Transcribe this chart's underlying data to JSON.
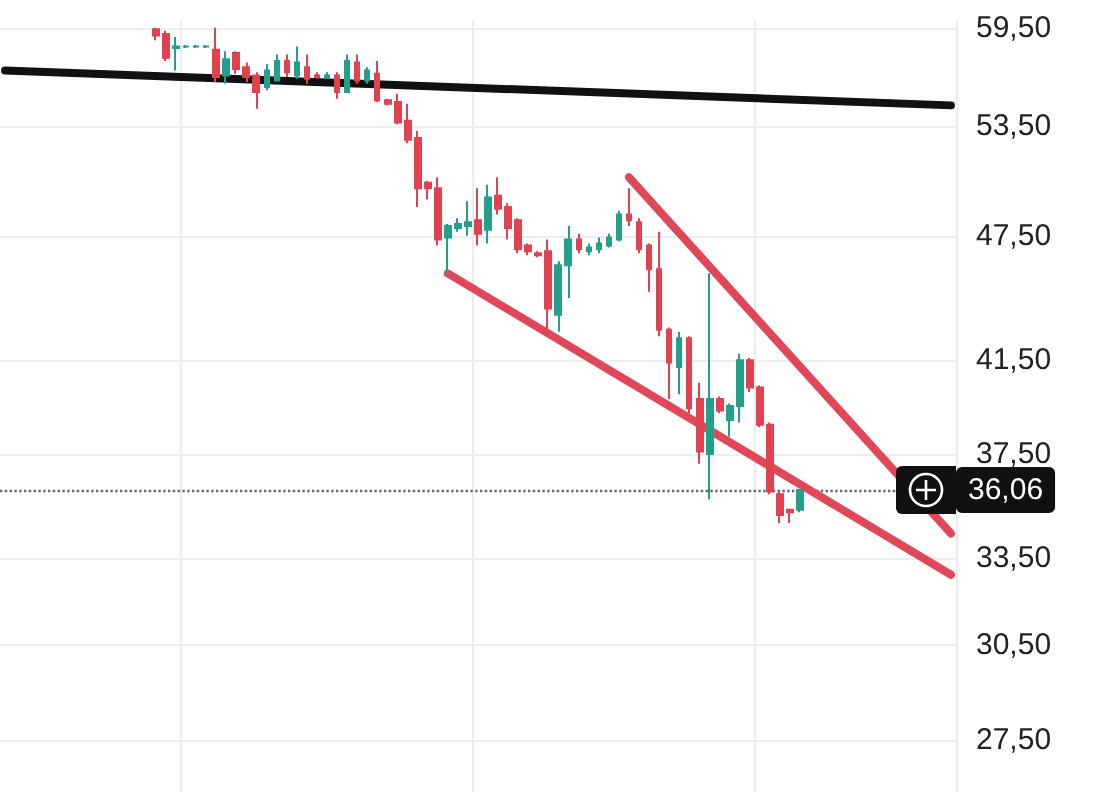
{
  "chart_data": {
    "type": "candlestick",
    "categories": [
      null,
      null,
      null,
      null,
      null,
      null,
      null,
      null,
      null,
      null,
      null,
      null,
      null,
      null,
      null,
      null,
      null,
      null,
      null,
      null,
      null,
      null,
      null,
      null,
      null,
      null,
      null,
      null,
      null,
      null,
      null,
      null,
      null,
      null,
      null,
      null,
      null,
      null,
      null,
      null,
      null,
      null,
      null,
      null,
      null,
      null,
      null,
      null,
      null,
      null,
      null,
      null,
      null,
      null,
      null,
      null,
      null,
      null,
      null,
      null,
      null,
      null,
      null,
      null,
      null,
      null,
      null,
      null,
      null,
      null,
      null,
      null,
      null,
      null,
      null,
      null,
      null,
      null,
      null,
      null,
      null,
      null,
      null,
      null,
      null,
      null,
      null,
      null,
      null,
      null,
      null,
      null,
      null,
      null,
      null
    ],
    "ohlc": [
      null,
      null,
      null,
      null,
      null,
      null,
      null,
      null,
      null,
      null,
      null,
      null,
      null,
      null,
      null,
      [
        59.4,
        59.5,
        58.7,
        59.0
      ],
      [
        59.1,
        59.3,
        57.4,
        57.6
      ],
      [
        58.2,
        58.9,
        56.8,
        58.3
      ],
      [
        58.3,
        58.4,
        58.2,
        58.3
      ],
      [
        58.3,
        58.4,
        58.2,
        58.3
      ],
      [
        58.3,
        58.4,
        58.2,
        58.3
      ],
      [
        58.1,
        59.5,
        56.1,
        56.4
      ],
      [
        56.5,
        58.0,
        56.0,
        57.5
      ],
      [
        57.9,
        58.0,
        56.6,
        56.9
      ],
      [
        57.0,
        57.3,
        56.1,
        56.4
      ],
      [
        56.5,
        56.7,
        54.5,
        55.5
      ],
      [
        55.8,
        57.2,
        55.6,
        56.8
      ],
      [
        56.2,
        57.8,
        56.2,
        57.4
      ],
      [
        57.4,
        57.8,
        56.4,
        56.7
      ],
      [
        56.5,
        58.3,
        56.3,
        57.3
      ],
      [
        57.0,
        57.8,
        56.0,
        56.3
      ],
      [
        56.5,
        56.7,
        56.3,
        56.4
      ],
      [
        56.4,
        56.7,
        56.3,
        56.5
      ],
      [
        56.5,
        56.7,
        55.1,
        55.5
      ],
      [
        55.5,
        57.8,
        55.5,
        57.4
      ],
      [
        57.3,
        57.8,
        56.0,
        56.2
      ],
      [
        56.2,
        57.0,
        56.0,
        56.8
      ],
      [
        56.6,
        57.4,
        54.9,
        55.0
      ],
      [
        55.0,
        55.1,
        54.7,
        54.8
      ],
      [
        54.9,
        55.4,
        53.6,
        53.7
      ],
      [
        53.8,
        54.8,
        52.5,
        52.7
      ],
      [
        52.8,
        53.2,
        49.0,
        50.0
      ],
      [
        50.3,
        50.4,
        49.4,
        50.0
      ],
      [
        50.0,
        50.6,
        47.0,
        47.3
      ],
      [
        47.4,
        48.1,
        45.6,
        48.0
      ],
      [
        47.9,
        48.4,
        47.7,
        48.1
      ],
      [
        48.0,
        49.3,
        47.5,
        48.2
      ],
      [
        48.3,
        50.0,
        47.0,
        47.6
      ],
      [
        47.8,
        50.2,
        47.1,
        49.5
      ],
      [
        49.6,
        50.6,
        48.6,
        48.9
      ],
      [
        49.0,
        49.2,
        47.3,
        47.9
      ],
      [
        48.3,
        48.4,
        46.6,
        46.8
      ],
      [
        47.0,
        47.1,
        46.5,
        46.7
      ],
      [
        46.6,
        46.7,
        46.4,
        46.5
      ],
      [
        46.7,
        47.3,
        42.9,
        43.9
      ],
      [
        43.6,
        46.2,
        42.8,
        46.0
      ],
      [
        46.0,
        48.0,
        44.4,
        47.3
      ],
      [
        47.3,
        47.6,
        46.6,
        46.8
      ],
      [
        46.7,
        47.1,
        46.5,
        46.9
      ],
      [
        46.8,
        47.4,
        46.6,
        47.1
      ],
      [
        47.0,
        47.6,
        46.9,
        47.4
      ],
      [
        47.3,
        48.8,
        47.2,
        48.6
      ],
      [
        48.6,
        50.0,
        48.0,
        48.3
      ],
      [
        48.2,
        48.4,
        46.6,
        46.8
      ],
      [
        47.0,
        47.1,
        44.7,
        45.8
      ],
      [
        45.8,
        47.7,
        42.6,
        42.9
      ],
      [
        42.9,
        43.0,
        39.8,
        41.4
      ],
      [
        41.2,
        42.8,
        40.0,
        42.5
      ],
      [
        42.5,
        42.6,
        39.2,
        39.4
      ],
      [
        39.8,
        40.5,
        37.1,
        37.6
      ],
      [
        37.5,
        45.6,
        35.7,
        39.8
      ],
      [
        39.8,
        39.9,
        39.2,
        39.3
      ],
      [
        38.9,
        39.6,
        38.2,
        39.5
      ],
      [
        39.5,
        41.8,
        38.8,
        41.5
      ],
      [
        41.5,
        41.6,
        40.1,
        40.3
      ],
      [
        40.3,
        40.4,
        38.6,
        38.7
      ],
      [
        38.7,
        38.8,
        35.9,
        36.0
      ],
      [
        35.9,
        36.0,
        34.8,
        35.1
      ],
      [
        35.3,
        35.3,
        34.8,
        35.2
      ],
      [
        35.3,
        36.1,
        35.2,
        36.06
      ],
      null,
      null,
      null,
      null,
      null,
      null,
      null,
      null,
      null,
      null,
      null,
      null,
      null,
      null,
      null
    ],
    "colors": [
      null,
      null,
      null,
      null,
      null,
      null,
      null,
      null,
      null,
      null,
      null,
      null,
      null,
      null,
      null,
      "#e0424f",
      "#e0424f",
      "#22a08a",
      "#22a08a",
      "#22a08a",
      "#22a08a",
      "#e0424f",
      "#22a08a",
      "#e0424f",
      "#e0424f",
      "#e0424f",
      "#22a08a",
      "#22a08a",
      "#e0424f",
      "#22a08a",
      "#e0424f",
      "#e0424f",
      "#22a08a",
      "#e0424f",
      "#22a08a",
      "#e0424f",
      "#22a08a",
      "#e0424f",
      "#e0424f",
      "#e0424f",
      "#e0424f",
      "#e0424f",
      "#e0424f",
      "#e0424f",
      "#22a08a",
      "#22a08a",
      "#22a08a",
      "#e0424f",
      "#22a08a",
      "#e0424f",
      "#e0424f",
      "#e0424f",
      "#e0424f",
      "#e0424f",
      "#e0424f",
      "#22a08a",
      "#22a08a",
      "#e0424f",
      "#22a08a",
      "#22a08a",
      "#22a08a",
      "#22a08a",
      "#e0424f",
      "#e0424f",
      "#e0424f",
      "#e0424f",
      "#e0424f",
      "#22a08a",
      "#e0424f",
      "#e0424f",
      "#22a08a",
      "#e0424f",
      "#22a08a",
      "#22a08a",
      "#e0424f",
      "#e0424f",
      "#e0424f",
      "#e0424f",
      "#e0424f",
      "#22a08a",
      null,
      null,
      null,
      null,
      null,
      null,
      null,
      null,
      null,
      null,
      null,
      null,
      null,
      null,
      null
    ],
    "series": [
      {
        "type": "line",
        "color": "#111111",
        "values": [
          56.8,
          null,
          null,
          null,
          null,
          null,
          null,
          null,
          null,
          null,
          null,
          null,
          null,
          null,
          null,
          null,
          null,
          null,
          null,
          null,
          null,
          null,
          null,
          null,
          null,
          null,
          null,
          null,
          null,
          null,
          null,
          null,
          null,
          null,
          null,
          null,
          null,
          null,
          null,
          null,
          null,
          null,
          null,
          null,
          null,
          null,
          null,
          null,
          null,
          null,
          null,
          null,
          null,
          null,
          null,
          null,
          null,
          null,
          null,
          null,
          null,
          null,
          null,
          null,
          null,
          null,
          null,
          null,
          null,
          null,
          null,
          null,
          null,
          null,
          null,
          null,
          null,
          null,
          null,
          null,
          null,
          null,
          null,
          null,
          null,
          null,
          null,
          null,
          null,
          null,
          null,
          null,
          null,
          null,
          54.7
        ]
      },
      {
        "type": "line",
        "color": "#e0485a",
        "values": [
          null,
          null,
          null,
          null,
          null,
          null,
          null,
          null,
          null,
          null,
          null,
          null,
          null,
          null,
          null,
          null,
          null,
          null,
          null,
          null,
          null,
          null,
          null,
          null,
          null,
          null,
          null,
          null,
          null,
          null,
          null,
          null,
          null,
          null,
          null,
          null,
          null,
          null,
          null,
          null,
          null,
          null,
          null,
          null,
          null,
          null,
          null,
          null,
          null,
          null,
          null,
          null,
          null,
          null,
          null,
          null,
          null,
          null,
          null,
          null,
          null,
          null,
          50.6,
          null,
          null,
          null,
          null,
          null,
          null,
          null,
          null,
          null,
          null,
          null,
          null,
          null,
          null,
          null,
          null,
          null,
          null,
          null,
          null,
          null,
          null,
          null,
          null,
          null,
          null,
          null,
          null,
          null,
          null,
          null,
          34.4
        ]
      },
      {
        "type": "line",
        "color": "#e0485a",
        "values": [
          null,
          null,
          null,
          null,
          null,
          null,
          null,
          null,
          null,
          null,
          null,
          null,
          null,
          null,
          null,
          null,
          null,
          null,
          null,
          null,
          null,
          null,
          null,
          null,
          null,
          null,
          null,
          null,
          null,
          null,
          null,
          null,
          null,
          null,
          null,
          null,
          null,
          null,
          null,
          null,
          null,
          null,
          null,
          null,
          45.6,
          null,
          null,
          null,
          null,
          null,
          null,
          null,
          null,
          null,
          null,
          null,
          null,
          null,
          null,
          null,
          null,
          null,
          null,
          null,
          null,
          null,
          null,
          null,
          null,
          null,
          null,
          null,
          null,
          null,
          null,
          null,
          null,
          null,
          null,
          null,
          null,
          null,
          null,
          null,
          null,
          null,
          null,
          null,
          null,
          null,
          null,
          null,
          null,
          null,
          32.9
        ]
      }
    ],
    "ylim": [
      26,
      60
    ],
    "log": "y",
    "yticks": [
      {
        "value": 27.5,
        "label": "27,50"
      },
      {
        "value": 30.5,
        "label": "30,50"
      },
      {
        "value": 33.5,
        "label": "33,50"
      },
      {
        "value": 37.5,
        "label": "37,50"
      },
      {
        "value": 41.5,
        "label": "41,50"
      },
      {
        "value": 47.5,
        "label": "47,50"
      },
      {
        "value": 53.5,
        "label": "53,50"
      },
      {
        "value": 59.5,
        "label": "59,50"
      }
    ],
    "ref_lines": [
      {
        "axis": "y",
        "value": 36.06,
        "label": "36,06",
        "color": "#666666",
        "line_style": "dotted"
      }
    ],
    "grid": true,
    "tick_labels": "y"
  }
}
